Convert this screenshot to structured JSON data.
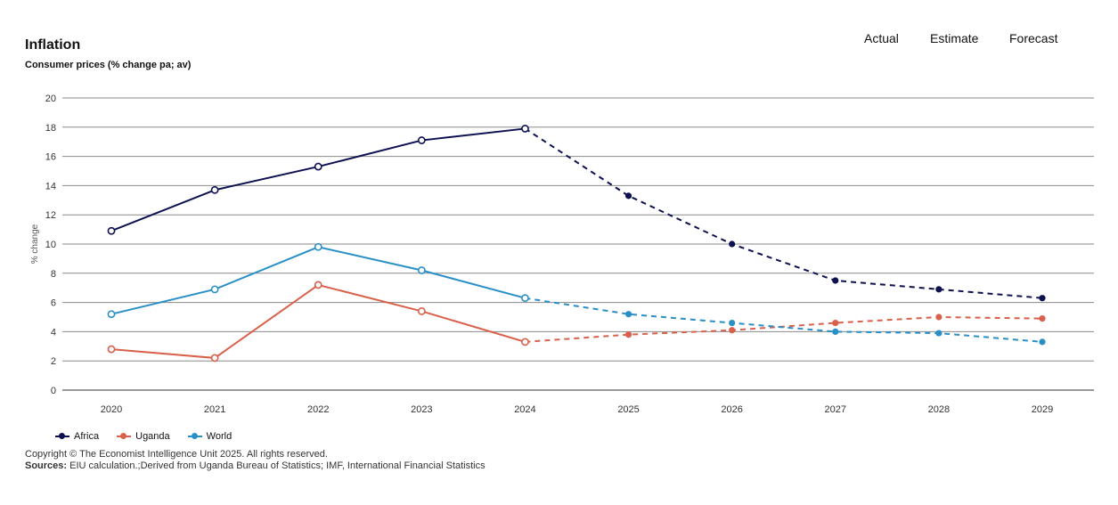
{
  "header": {
    "title": "Inflation",
    "subtitle": "Consumer prices (% change pa; av)",
    "phases": [
      "Actual",
      "Estimate",
      "Forecast"
    ]
  },
  "chart_data": {
    "type": "line",
    "title": "Inflation",
    "subtitle": "Consumer prices (% change pa; av)",
    "xlabel": "",
    "ylabel": "% change",
    "ylim": [
      0,
      20
    ],
    "yticks": [
      "0",
      "2",
      "4",
      "6",
      "8",
      "10",
      "12",
      "14",
      "16",
      "18",
      "20"
    ],
    "categories": [
      "2020",
      "2021",
      "2022",
      "2023",
      "2024",
      "2025",
      "2026",
      "2027",
      "2028",
      "2029"
    ],
    "actual_until_index": 4,
    "grid": true,
    "legend_position": "bottom-left",
    "series": [
      {
        "name": "Africa",
        "color": "#0d1150",
        "values": [
          10.9,
          13.7,
          15.3,
          17.1,
          17.9,
          13.3,
          10.0,
          7.5,
          6.9,
          6.3
        ]
      },
      {
        "name": "Uganda",
        "color": "#d9604a",
        "values": [
          2.8,
          2.2,
          7.2,
          5.4,
          3.3,
          3.8,
          4.1,
          4.6,
          5.0,
          4.9
        ]
      },
      {
        "name": "World",
        "color": "#2990c7",
        "values": [
          5.2,
          6.9,
          9.8,
          8.2,
          6.3,
          5.2,
          4.6,
          4.0,
          3.9,
          3.3
        ]
      }
    ]
  },
  "footer": {
    "copyright": "Copyright © The Economist Intelligence Unit 2025. All rights reserved.",
    "sources_label": "Sources:",
    "sources_text": " EIU calculation.;Derived from Uganda Bureau of Statistics; IMF, International Financial Statistics"
  }
}
